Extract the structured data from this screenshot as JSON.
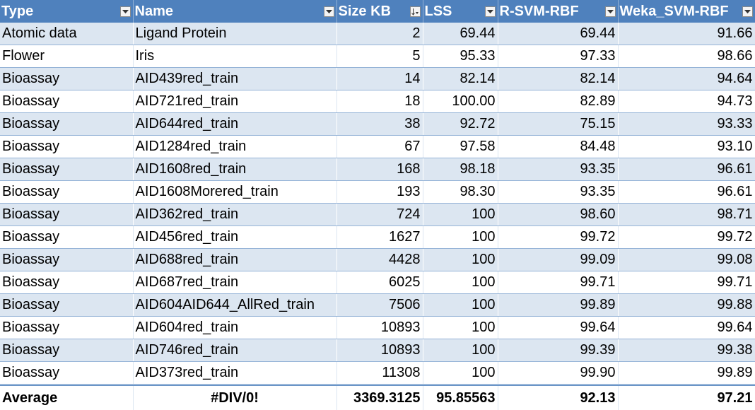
{
  "headers": [
    {
      "label": "Type",
      "filter": "filter-dropdown"
    },
    {
      "label": "Name",
      "filter": "filter-dropdown"
    },
    {
      "label": "Size KB",
      "filter": "sort-ascending"
    },
    {
      "label": "LSS",
      "filter": "filter-dropdown"
    },
    {
      "label": "R-SVM-RBF",
      "filter": "filter-dropdown"
    },
    {
      "label": "Weka_SVM-RBF",
      "filter": "filter-dropdown"
    }
  ],
  "rows": [
    [
      "Atomic data",
      "Ligand Protein",
      "2",
      "69.44",
      "69.44",
      "91.66"
    ],
    [
      "Flower",
      "Iris",
      "5",
      "95.33",
      "97.33",
      "98.66"
    ],
    [
      "Bioassay",
      "AID439red_train",
      "14",
      "82.14",
      "82.14",
      "94.64"
    ],
    [
      "Bioassay",
      "AID721red_train",
      "18",
      "100.00",
      "82.89",
      "94.73"
    ],
    [
      "Bioassay",
      "AID644red_train",
      "38",
      "92.72",
      "75.15",
      "93.33"
    ],
    [
      "Bioassay",
      "AID1284red_train",
      "67",
      "97.58",
      "84.48",
      "93.10"
    ],
    [
      "Bioassay",
      "AID1608red_train",
      "168",
      "98.18",
      "93.35",
      "96.61"
    ],
    [
      "Bioassay",
      "AID1608Morered_train",
      "193",
      "98.30",
      "93.35",
      "96.61"
    ],
    [
      "Bioassay",
      "AID362red_train",
      "724",
      "100",
      "98.60",
      "98.71"
    ],
    [
      "Bioassay",
      "AID456red_train",
      "1627",
      "100",
      "99.72",
      "99.72"
    ],
    [
      "Bioassay",
      "AID688red_train",
      "4428",
      "100",
      "99.09",
      "99.08"
    ],
    [
      "Bioassay",
      "AID687red_train",
      "6025",
      "100",
      "99.71",
      "99.71"
    ],
    [
      "Bioassay",
      "AID604AID644_AllRed_train",
      "7506",
      "100",
      "99.89",
      "99.88"
    ],
    [
      "Bioassay",
      "AID604red_train",
      "10893",
      "100",
      "99.64",
      "99.64"
    ],
    [
      "Bioassay",
      "AID746red_train",
      "10893",
      "100",
      "99.39",
      "99.38"
    ],
    [
      "Bioassay",
      "AID373red_train",
      "11308",
      "100",
      "99.90",
      "99.89"
    ]
  ],
  "total": [
    "Average",
    "#DIV/0!",
    "3369.3125",
    "95.85563",
    "92.13",
    "97.21"
  ],
  "colors": {
    "header_bg": "#4f81bd",
    "band_bg": "#dce6f1",
    "border": "#95b3d7"
  }
}
